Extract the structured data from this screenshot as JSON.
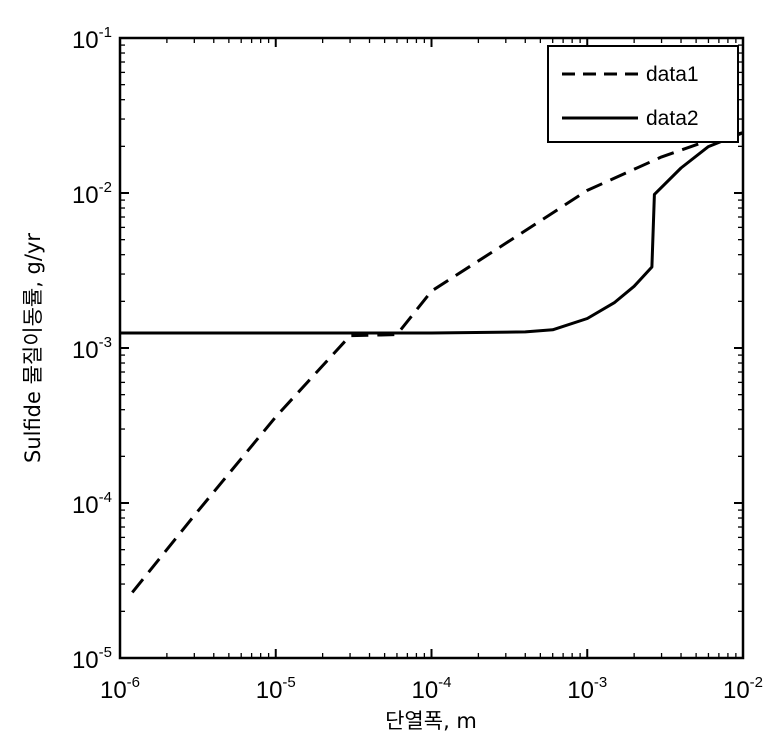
{
  "chart_data": {
    "type": "line",
    "xlabel": "단열폭, m",
    "ylabel": "Sulfide 물질이동률, g/yr",
    "xscale": "log",
    "yscale": "log",
    "xlim": [
      1e-06,
      0.01
    ],
    "ylim": [
      1e-05,
      0.1
    ],
    "grid": false,
    "legend_position": "top-right",
    "x_ticks": [
      {
        "base": "10",
        "exp": "-6",
        "value": 1e-06
      },
      {
        "base": "10",
        "exp": "-5",
        "value": 1e-05
      },
      {
        "base": "10",
        "exp": "-4",
        "value": 0.0001
      },
      {
        "base": "10",
        "exp": "-3",
        "value": 0.001
      },
      {
        "base": "10",
        "exp": "-2",
        "value": 0.01
      }
    ],
    "y_ticks": [
      {
        "base": "10",
        "exp": "-5",
        "value": 1e-05
      },
      {
        "base": "10",
        "exp": "-4",
        "value": 0.0001
      },
      {
        "base": "10",
        "exp": "-3",
        "value": 0.001
      },
      {
        "base": "10",
        "exp": "-2",
        "value": 0.01
      },
      {
        "base": "10",
        "exp": "-1",
        "value": 0.1
      }
    ],
    "series": [
      {
        "name": "data1",
        "style": "dashed",
        "color": "#000000",
        "points": [
          [
            1.2e-06,
            2.65e-05
          ],
          [
            3e-06,
            8.3e-05
          ],
          [
            1e-05,
            0.00036
          ],
          [
            3e-05,
            0.0012
          ],
          [
            6e-05,
            0.00122
          ],
          [
            0.0001,
            0.00233
          ],
          [
            0.0003,
            0.00474
          ],
          [
            0.001,
            0.0104
          ],
          [
            0.003,
            0.0171
          ],
          [
            0.006,
            0.0218
          ],
          [
            0.01,
            0.0245
          ]
        ]
      },
      {
        "name": "data2",
        "style": "solid",
        "color": "#000000",
        "points": [
          [
            1e-06,
            0.00125
          ],
          [
            0.0001,
            0.00125
          ],
          [
            0.0004,
            0.00127
          ],
          [
            0.0006,
            0.00131
          ],
          [
            0.001,
            0.00155
          ],
          [
            0.0015,
            0.00197
          ],
          [
            0.002,
            0.0025
          ],
          [
            0.0026,
            0.00333
          ],
          [
            0.0027,
            0.0098
          ],
          [
            0.004,
            0.0145
          ],
          [
            0.006,
            0.01992
          ],
          [
            0.01,
            0.0245
          ]
        ]
      }
    ]
  }
}
